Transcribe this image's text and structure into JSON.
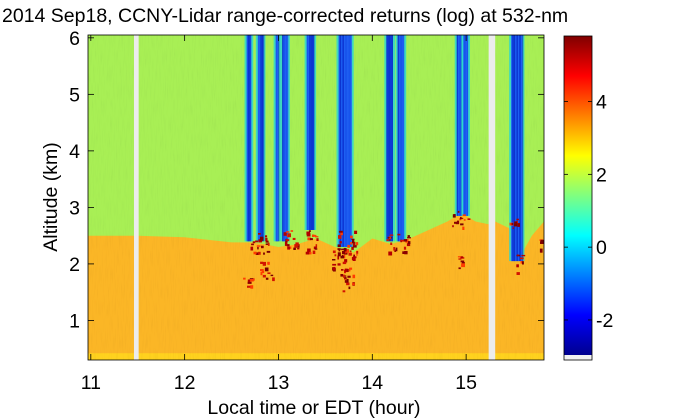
{
  "chart_data": {
    "type": "heatmap",
    "title": "2014 Sep18, CCNY-Lidar range-corrected returns (log) at 532-nm",
    "xlabel": "Local time or EDT (hour)",
    "ylabel": "Altitude (km)",
    "xlim": [
      10.97,
      15.83
    ],
    "ylim": [
      0.3,
      6.05
    ],
    "x_ticks": [
      11,
      12,
      13,
      14,
      15
    ],
    "y_ticks": [
      1,
      2,
      3,
      4,
      5,
      6
    ],
    "colorbar": {
      "range": [
        -3.1,
        5.8
      ],
      "ticks": [
        -2,
        0,
        2,
        4
      ],
      "colormap": "jet"
    },
    "data_gaps": [
      [
        11.46,
        11.51
      ],
      [
        15.24,
        15.31
      ]
    ],
    "boundary_layer_top_km": [
      [
        10.97,
        2.5
      ],
      [
        11.5,
        2.5
      ],
      [
        12.0,
        2.47
      ],
      [
        12.5,
        2.38
      ],
      [
        12.7,
        2.38
      ],
      [
        12.85,
        2.35
      ],
      [
        13.0,
        2.3
      ],
      [
        13.2,
        2.35
      ],
      [
        13.4,
        2.45
      ],
      [
        13.6,
        2.3
      ],
      [
        13.8,
        2.2
      ],
      [
        14.0,
        2.45
      ],
      [
        14.2,
        2.35
      ],
      [
        14.4,
        2.45
      ],
      [
        14.6,
        2.6
      ],
      [
        14.8,
        2.75
      ],
      [
        14.95,
        2.9
      ],
      [
        15.1,
        2.75
      ],
      [
        15.24,
        2.7
      ],
      [
        15.31,
        2.75
      ],
      [
        15.5,
        2.6
      ],
      [
        15.6,
        2.2
      ],
      [
        15.7,
        2.5
      ],
      [
        15.83,
        2.75
      ]
    ],
    "cloud_events": [
      [
        12.62,
        12.72,
        1.6,
        1.78
      ],
      [
        12.7,
        12.9,
        2.2,
        2.55
      ],
      [
        12.8,
        12.95,
        1.75,
        2.05
      ],
      [
        13.05,
        13.2,
        2.2,
        2.6
      ],
      [
        13.28,
        13.42,
        2.2,
        2.6
      ],
      [
        13.55,
        13.7,
        1.9,
        2.25
      ],
      [
        13.62,
        13.85,
        2.1,
        2.6
      ],
      [
        13.66,
        13.8,
        1.5,
        1.95
      ],
      [
        14.15,
        14.38,
        2.2,
        2.55
      ],
      [
        14.85,
        15.02,
        2.65,
        2.95
      ],
      [
        14.9,
        14.98,
        1.9,
        2.15
      ],
      [
        15.45,
        15.55,
        2.6,
        2.8
      ],
      [
        15.52,
        15.6,
        1.85,
        2.2
      ],
      [
        15.78,
        15.83,
        2.25,
        2.5
      ]
    ],
    "signal_loss_columns": [
      [
        12.66,
        12.71,
        2.4
      ],
      [
        12.78,
        12.84,
        2.4
      ],
      [
        12.97,
        13.0,
        2.4
      ],
      [
        13.04,
        13.1,
        2.4
      ],
      [
        13.3,
        13.38,
        2.6
      ],
      [
        13.64,
        13.78,
        2.3
      ],
      [
        14.15,
        14.22,
        2.4
      ],
      [
        14.27,
        14.34,
        2.4
      ],
      [
        14.9,
        14.95,
        2.85
      ],
      [
        14.97,
        15.02,
        2.85
      ],
      [
        15.48,
        15.6,
        2.05
      ]
    ]
  }
}
